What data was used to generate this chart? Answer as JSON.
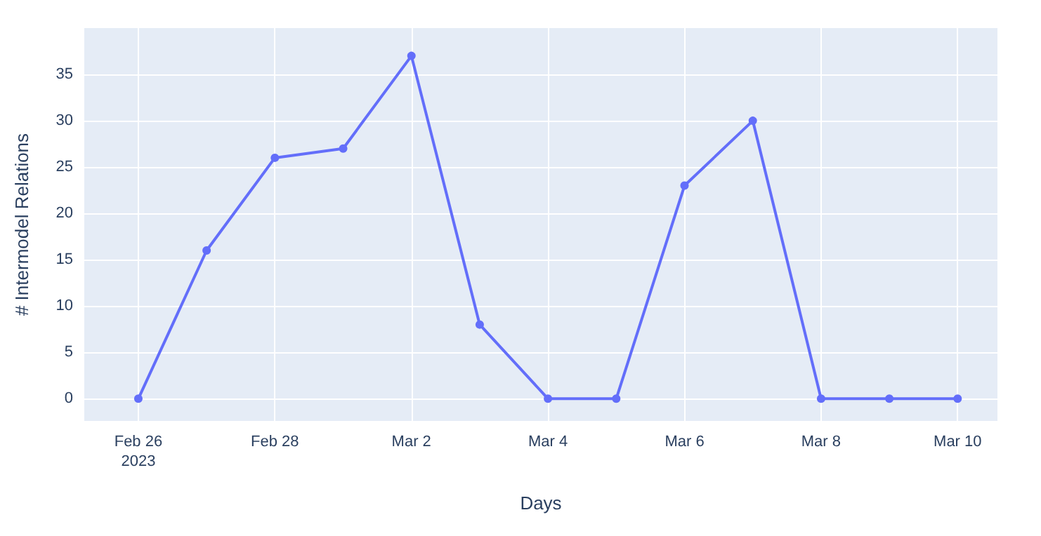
{
  "chart_data": {
    "type": "line",
    "xlabel": "Days",
    "ylabel": "# Intermodel Relations",
    "x": [
      "2023-02-26",
      "2023-02-27",
      "2023-02-28",
      "2023-03-01",
      "2023-03-02",
      "2023-03-03",
      "2023-03-04",
      "2023-03-05",
      "2023-03-06",
      "2023-03-07",
      "2023-03-08",
      "2023-03-09",
      "2023-03-10"
    ],
    "series": [
      {
        "color": "#636efa",
        "values": [
          0,
          16,
          26,
          27,
          37,
          8,
          0,
          0,
          23,
          30,
          0,
          0,
          0
        ]
      }
    ],
    "xlim": [
      "2023-02-25T05:00",
      "2023-03-10T14:00"
    ],
    "xticks": [
      {
        "value": "2023-02-26",
        "label": "Feb 26\n2023"
      },
      {
        "value": "2023-02-28",
        "label": "Feb 28"
      },
      {
        "value": "2023-03-02",
        "label": "Mar 2"
      },
      {
        "value": "2023-03-04",
        "label": "Mar 4"
      },
      {
        "value": "2023-03-06",
        "label": "Mar 6"
      },
      {
        "value": "2023-03-08",
        "label": "Mar 8"
      },
      {
        "value": "2023-03-10",
        "label": "Mar 10"
      }
    ],
    "ylim": [
      -2.4,
      40
    ],
    "yticks": [
      0,
      5,
      10,
      15,
      20,
      25,
      30,
      35
    ],
    "grid": true,
    "marker": "circle",
    "line_style": "solid"
  }
}
